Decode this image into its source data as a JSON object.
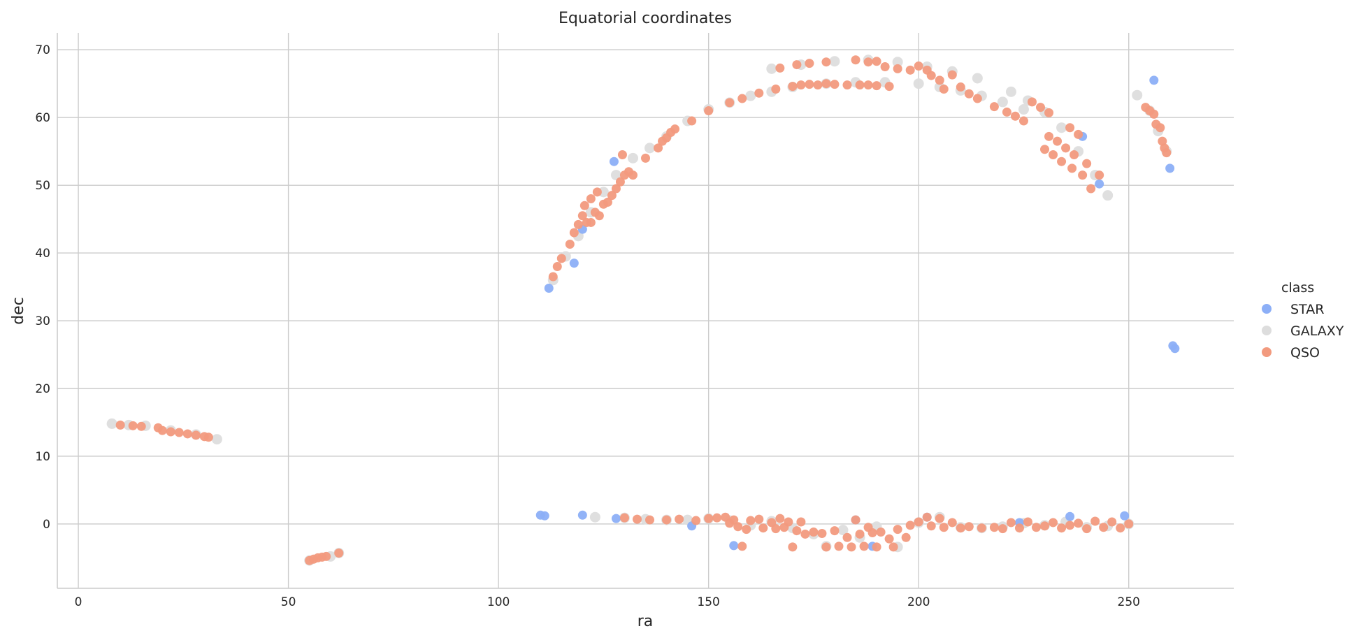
{
  "chart_data": {
    "type": "scatter",
    "title": "Equatorial coordinates",
    "xlabel": "ra",
    "ylabel": "dec",
    "xlim": [
      -5,
      275
    ],
    "ylim": [
      -9.5,
      72.5
    ],
    "xticks": [
      0,
      50,
      100,
      150,
      200,
      250
    ],
    "yticks": [
      0,
      10,
      20,
      30,
      40,
      50,
      60,
      70
    ],
    "grid": true,
    "legend": {
      "title": "class",
      "placement": "right"
    },
    "series": [
      {
        "name": "STAR",
        "color": "#8caff7",
        "points": [
          [
            110,
            1.3
          ],
          [
            111,
            1.2
          ],
          [
            120,
            1.3
          ],
          [
            128,
            0.8
          ],
          [
            146,
            -0.3
          ],
          [
            156,
            -3.2
          ],
          [
            189,
            -3.3
          ],
          [
            249,
            1.2
          ],
          [
            260.5,
            26.3
          ],
          [
            261,
            25.9
          ],
          [
            259.8,
            52.5
          ],
          [
            256,
            65.5
          ],
          [
            112,
            34.8
          ],
          [
            118,
            38.5
          ],
          [
            120,
            43.5
          ],
          [
            127.5,
            53.5
          ],
          [
            239,
            57.2
          ],
          [
            243,
            50.2
          ],
          [
            202,
            1.0
          ],
          [
            236,
            1.1
          ],
          [
            224,
            0.2
          ],
          [
            185,
            0.6
          ]
        ]
      },
      {
        "name": "GALAXY",
        "color": "#dddddd",
        "points": [
          [
            8,
            14.8
          ],
          [
            12,
            14.6
          ],
          [
            16,
            14.5
          ],
          [
            22,
            13.8
          ],
          [
            28,
            13.2
          ],
          [
            33,
            12.5
          ],
          [
            55,
            -5.4
          ],
          [
            60,
            -4.8
          ],
          [
            62,
            -4.3
          ],
          [
            113,
            36
          ],
          [
            116,
            39.5
          ],
          [
            119,
            42.5
          ],
          [
            122,
            46
          ],
          [
            125,
            49
          ],
          [
            128,
            51.5
          ],
          [
            132,
            54
          ],
          [
            136,
            55.5
          ],
          [
            140,
            57.2
          ],
          [
            145,
            59.5
          ],
          [
            150,
            61.2
          ],
          [
            155,
            62.2
          ],
          [
            160,
            63.2
          ],
          [
            165,
            63.8
          ],
          [
            170,
            64.5
          ],
          [
            178,
            65
          ],
          [
            185,
            65.2
          ],
          [
            192,
            65.2
          ],
          [
            200,
            65
          ],
          [
            205,
            64.5
          ],
          [
            210,
            64
          ],
          [
            215,
            63.2
          ],
          [
            220,
            62.3
          ],
          [
            225,
            61.2
          ],
          [
            165,
            67.2
          ],
          [
            172,
            67.8
          ],
          [
            180,
            68.3
          ],
          [
            188,
            68.5
          ],
          [
            195,
            68.2
          ],
          [
            202,
            67.5
          ],
          [
            208,
            66.8
          ],
          [
            214,
            65.8
          ],
          [
            222,
            63.8
          ],
          [
            226,
            62.5
          ],
          [
            230,
            60.8
          ],
          [
            234,
            58.5
          ],
          [
            238,
            55
          ],
          [
            242,
            51.5
          ],
          [
            245,
            48.5
          ],
          [
            252,
            63.3
          ],
          [
            255,
            61
          ],
          [
            257,
            58
          ],
          [
            259,
            55
          ],
          [
            123,
            1.0
          ],
          [
            130,
            0.9
          ],
          [
            135,
            0.7
          ],
          [
            140,
            0.6
          ],
          [
            145,
            0.6
          ],
          [
            150,
            0.8
          ],
          [
            155,
            0.5
          ],
          [
            160,
            -0.2
          ],
          [
            165,
            0.4
          ],
          [
            170,
            -0.6
          ],
          [
            175,
            -1.5
          ],
          [
            178,
            -3.3
          ],
          [
            182,
            -0.9
          ],
          [
            186,
            -2.0
          ],
          [
            190,
            -0.4
          ],
          [
            195,
            -3.4
          ],
          [
            200,
            0.2
          ],
          [
            205,
            1.0
          ],
          [
            210,
            -0.5
          ],
          [
            215,
            -0.6
          ],
          [
            220,
            -0.4
          ],
          [
            225,
            0.1
          ],
          [
            230,
            -0.2
          ],
          [
            235,
            0.3
          ],
          [
            240,
            -0.5
          ],
          [
            245,
            -0.3
          ],
          [
            250,
            0.0
          ]
        ]
      },
      {
        "name": "QSO",
        "color": "#f29a7e",
        "points": [
          [
            10,
            14.6
          ],
          [
            13,
            14.5
          ],
          [
            15,
            14.4
          ],
          [
            19,
            14.2
          ],
          [
            20,
            13.8
          ],
          [
            22,
            13.6
          ],
          [
            24,
            13.5
          ],
          [
            26,
            13.3
          ],
          [
            28,
            13.1
          ],
          [
            30,
            12.9
          ],
          [
            31,
            12.8
          ],
          [
            55,
            -5.4
          ],
          [
            56,
            -5.2
          ],
          [
            57,
            -5.0
          ],
          [
            58,
            -4.9
          ],
          [
            59,
            -4.8
          ],
          [
            62,
            -4.3
          ],
          [
            113,
            36.5
          ],
          [
            114,
            38
          ],
          [
            115,
            39.2
          ],
          [
            117,
            41.3
          ],
          [
            118,
            43
          ],
          [
            119,
            44.2
          ],
          [
            120,
            45.5
          ],
          [
            120.5,
            47
          ],
          [
            121,
            44.5
          ],
          [
            122,
            48
          ],
          [
            122,
            44.5
          ],
          [
            123,
            46
          ],
          [
            123.5,
            49
          ],
          [
            124,
            45.5
          ],
          [
            125,
            47.2
          ],
          [
            126,
            47.5
          ],
          [
            127,
            48.5
          ],
          [
            128,
            49.5
          ],
          [
            129,
            50.5
          ],
          [
            129.5,
            54.5
          ],
          [
            130,
            51.5
          ],
          [
            131,
            52
          ],
          [
            132,
            51.5
          ],
          [
            135,
            54
          ],
          [
            138,
            55.5
          ],
          [
            139,
            56.5
          ],
          [
            140,
            57
          ],
          [
            141,
            57.8
          ],
          [
            142,
            58.3
          ],
          [
            146,
            59.5
          ],
          [
            150,
            61
          ],
          [
            155,
            62.2
          ],
          [
            158,
            62.8
          ],
          [
            162,
            63.6
          ],
          [
            166,
            64.2
          ],
          [
            170,
            64.6
          ],
          [
            172,
            64.8
          ],
          [
            174,
            64.9
          ],
          [
            176,
            64.8
          ],
          [
            178,
            65
          ],
          [
            180,
            64.9
          ],
          [
            183,
            64.8
          ],
          [
            186,
            64.8
          ],
          [
            188,
            64.8
          ],
          [
            190,
            64.7
          ],
          [
            193,
            64.6
          ],
          [
            167,
            67.3
          ],
          [
            171,
            67.8
          ],
          [
            174,
            68
          ],
          [
            178,
            68.2
          ],
          [
            185,
            68.5
          ],
          [
            188,
            68.2
          ],
          [
            190,
            68.3
          ],
          [
            192,
            67.5
          ],
          [
            195,
            67.2
          ],
          [
            198,
            67
          ],
          [
            200,
            67.6
          ],
          [
            202,
            67
          ],
          [
            203,
            66.2
          ],
          [
            205,
            65.5
          ],
          [
            206,
            64.2
          ],
          [
            208,
            66.3
          ],
          [
            210,
            64.5
          ],
          [
            212,
            63.5
          ],
          [
            214,
            62.8
          ],
          [
            218,
            61.6
          ],
          [
            221,
            60.8
          ],
          [
            223,
            60.2
          ],
          [
            225,
            59.5
          ],
          [
            227,
            62.3
          ],
          [
            229,
            61.5
          ],
          [
            231,
            60.7
          ],
          [
            230,
            55.3
          ],
          [
            231,
            57.2
          ],
          [
            232,
            54.5
          ],
          [
            233,
            56.5
          ],
          [
            234,
            53.5
          ],
          [
            235,
            55.5
          ],
          [
            236,
            58.5
          ],
          [
            236.5,
            52.5
          ],
          [
            237,
            54.5
          ],
          [
            238,
            57.5
          ],
          [
            239,
            51.5
          ],
          [
            240,
            53.2
          ],
          [
            241,
            49.5
          ],
          [
            243,
            51.5
          ],
          [
            254,
            61.5
          ],
          [
            255,
            61
          ],
          [
            256,
            60.5
          ],
          [
            256.5,
            59
          ],
          [
            257.5,
            58.5
          ],
          [
            258,
            56.5
          ],
          [
            258.5,
            55.5
          ],
          [
            259,
            54.8
          ],
          [
            130,
            0.9
          ],
          [
            133,
            0.7
          ],
          [
            136,
            0.6
          ],
          [
            140,
            0.6
          ],
          [
            143,
            0.7
          ],
          [
            147,
            0.5
          ],
          [
            150,
            0.8
          ],
          [
            152,
            0.9
          ],
          [
            154,
            1.0
          ],
          [
            155,
            0.1
          ],
          [
            156,
            0.6
          ],
          [
            157,
            -0.4
          ],
          [
            158,
            -3.3
          ],
          [
            159,
            -0.8
          ],
          [
            160,
            0.5
          ],
          [
            162,
            0.7
          ],
          [
            163,
            -0.6
          ],
          [
            165,
            0.2
          ],
          [
            166,
            -0.7
          ],
          [
            167,
            0.8
          ],
          [
            168,
            -0.5
          ],
          [
            169,
            0.3
          ],
          [
            170,
            -3.4
          ],
          [
            171,
            -1.0
          ],
          [
            172,
            0.3
          ],
          [
            173,
            -1.5
          ],
          [
            175,
            -1.2
          ],
          [
            177,
            -1.4
          ],
          [
            178,
            -3.4
          ],
          [
            180,
            -1.0
          ],
          [
            181,
            -3.3
          ],
          [
            183,
            -2.0
          ],
          [
            184,
            -3.4
          ],
          [
            185,
            0.6
          ],
          [
            186,
            -1.5
          ],
          [
            187,
            -3.3
          ],
          [
            188,
            -0.5
          ],
          [
            189,
            -1.3
          ],
          [
            190,
            -3.4
          ],
          [
            191,
            -1.2
          ],
          [
            193,
            -2.2
          ],
          [
            194,
            -3.4
          ],
          [
            195,
            -0.8
          ],
          [
            197,
            -2.0
          ],
          [
            198,
            -0.2
          ],
          [
            200,
            0.3
          ],
          [
            202,
            1.0
          ],
          [
            203,
            -0.3
          ],
          [
            205,
            0.8
          ],
          [
            206,
            -0.5
          ],
          [
            208,
            0.2
          ],
          [
            210,
            -0.6
          ],
          [
            212,
            -0.4
          ],
          [
            215,
            -0.6
          ],
          [
            218,
            -0.5
          ],
          [
            220,
            -0.7
          ],
          [
            222,
            0.2
          ],
          [
            224,
            -0.6
          ],
          [
            226,
            0.3
          ],
          [
            228,
            -0.5
          ],
          [
            230,
            -0.3
          ],
          [
            232,
            0.2
          ],
          [
            234,
            -0.6
          ],
          [
            236,
            -0.2
          ],
          [
            238,
            0.1
          ],
          [
            240,
            -0.7
          ],
          [
            242,
            0.4
          ],
          [
            244,
            -0.5
          ],
          [
            246,
            0.3
          ],
          [
            248,
            -0.6
          ],
          [
            250,
            0.0
          ]
        ]
      }
    ]
  }
}
